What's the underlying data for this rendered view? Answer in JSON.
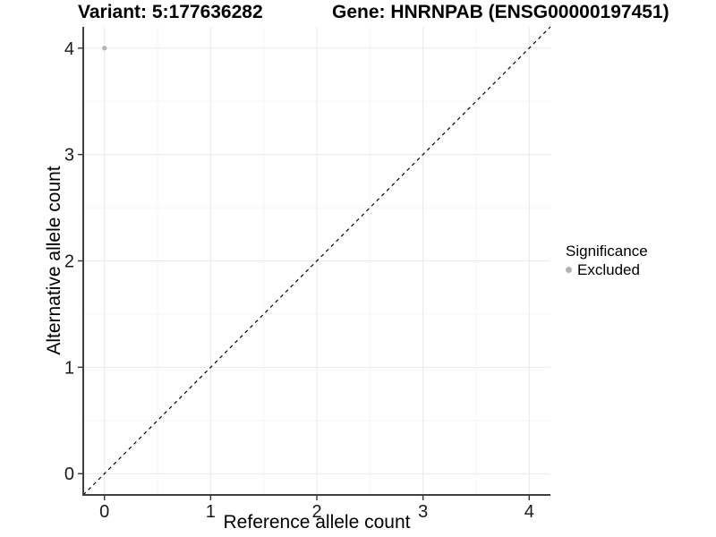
{
  "chart_data": {
    "type": "scatter",
    "title_left": "Variant: 5:177636282",
    "title_right": "Gene: HNRNPAB (ENSG00000197451)",
    "xlabel": "Reference allele count",
    "ylabel": "Alternative allele count",
    "xlim": [
      -0.2,
      4.2
    ],
    "ylim": [
      -0.2,
      4.2
    ],
    "x_ticks": [
      0,
      1,
      2,
      3,
      4
    ],
    "y_ticks": [
      0,
      1,
      2,
      3,
      4
    ],
    "x_minor": [
      0.5,
      1.5,
      2.5,
      3.5
    ],
    "y_minor": [
      0.5,
      1.5,
      2.5,
      3.5
    ],
    "grid": "major+minor",
    "legend_position": "right-center",
    "legend": {
      "title": "Significance",
      "entries": [
        {
          "label": "Excluded",
          "color": "#b3b3b3"
        }
      ]
    },
    "series": [
      {
        "name": "Excluded",
        "color": "#b3b3b3",
        "point_radius": 2.6,
        "points": [
          [
            0,
            4
          ]
        ]
      }
    ],
    "reference_line": {
      "kind": "identity y=x",
      "style": "dashed",
      "color": "#000000"
    },
    "style": {
      "background": "#ffffff",
      "grid_major": "#e9e9e9",
      "grid_minor": "#f5f5f5",
      "axis_line": "#3f3f3f",
      "tick_mark": "#333333",
      "tick_label_color": "#1a1a1a"
    }
  }
}
